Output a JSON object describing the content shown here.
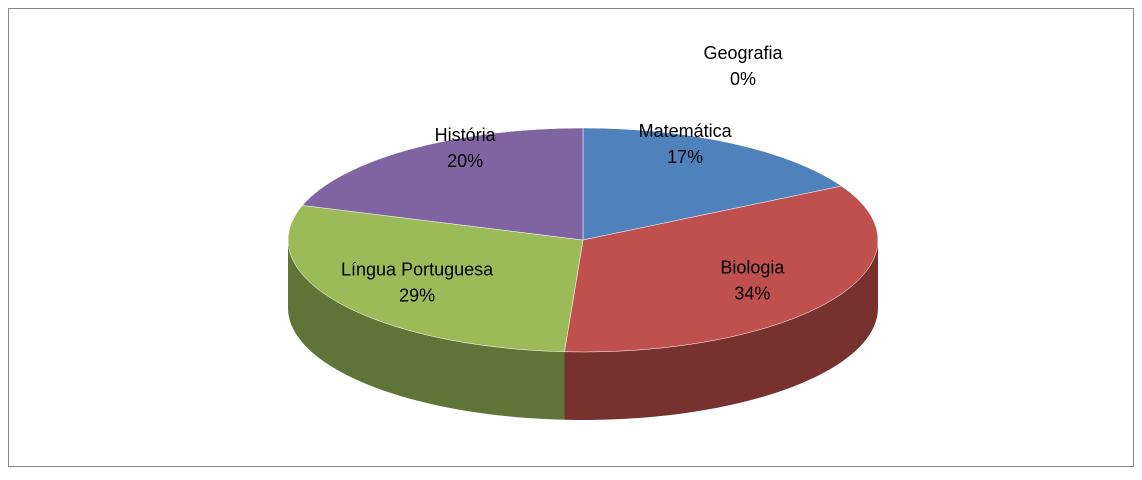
{
  "chart_data": {
    "type": "pie3d",
    "categories": [
      "Matemática",
      "Biologia",
      "Língua Portuguesa",
      "História",
      "Geografia"
    ],
    "values": [
      17,
      34,
      29,
      20,
      0
    ],
    "value_labels": [
      "17%",
      "34%",
      "29%",
      "20%",
      "0%"
    ],
    "colors": [
      "#4f81bd",
      "#c0504d",
      "#9bbb59",
      "#8064a2",
      "#4bacc6"
    ]
  }
}
